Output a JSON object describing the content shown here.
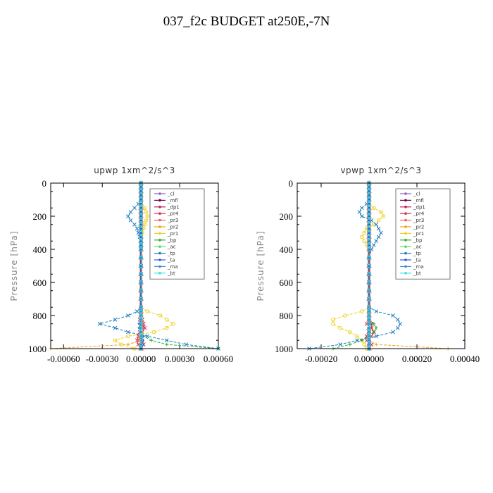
{
  "page": {
    "title": "037_f2c  BUDGET at250E,-7N"
  },
  "chart_data": [
    {
      "type": "line",
      "title": "upwp   1xm^2/s^3",
      "ylabel": "Pressure [hPa]",
      "xlim": [
        -0.0007,
        0.0006
      ],
      "ylim": [
        1000,
        0
      ],
      "xticks": [
        -0.0006,
        -0.0003,
        0.0,
        0.0003,
        0.0006
      ],
      "xtick_labels": [
        "-0.00060",
        "-0.00030",
        "0.00000",
        "0.00030",
        "0.00060"
      ],
      "yticks": [
        0,
        200,
        400,
        600,
        800,
        1000
      ],
      "legend": "top-right",
      "pressure": [
        0,
        25,
        50,
        75,
        100,
        125,
        150,
        175,
        200,
        225,
        250,
        275,
        300,
        325,
        350,
        375,
        400,
        450,
        500,
        550,
        600,
        650,
        700,
        750,
        775,
        800,
        825,
        850,
        875,
        900,
        925,
        950,
        975,
        1000
      ],
      "series": [
        {
          "name": "_cl",
          "color": "#9060c0",
          "marker": "o",
          "values": [
            0,
            0,
            0,
            0,
            0,
            0,
            0,
            0,
            0,
            0,
            0,
            0,
            0,
            0,
            0,
            0,
            0,
            0,
            0,
            0,
            0,
            0,
            0,
            0,
            0,
            0,
            0,
            0,
            0,
            0,
            0,
            0,
            0,
            0
          ]
        },
        {
          "name": "_mfl",
          "color": "#700050",
          "marker": "d",
          "values": [
            0,
            0,
            0,
            0,
            0,
            0,
            0,
            0,
            0,
            0,
            0,
            0,
            0,
            0,
            0,
            0,
            0,
            0,
            0,
            0,
            0,
            0,
            0,
            0,
            0,
            0,
            0,
            0,
            0,
            0,
            0,
            0,
            0,
            0
          ]
        },
        {
          "name": "_dp1",
          "color": "#c02060",
          "marker": "*",
          "values": [
            0,
            0,
            0,
            0,
            0,
            0,
            0,
            0,
            0,
            0,
            0,
            0,
            0,
            0,
            0,
            0,
            0,
            0,
            0,
            0,
            0,
            0,
            0,
            0,
            0,
            0,
            1e-05,
            2e-05,
            1e-05,
            -1e-05,
            -2e-05,
            1e-05,
            2e-05,
            0
          ]
        },
        {
          "name": "_pr4",
          "color": "#e03050",
          "marker": "x",
          "values": [
            0,
            0,
            0,
            0,
            0,
            0,
            0,
            0,
            0,
            0,
            0,
            0,
            0,
            0,
            0,
            0,
            0,
            0,
            0,
            0,
            0,
            0,
            0,
            0,
            0,
            0,
            -1e-05,
            2e-05,
            3e-05,
            1e-05,
            -2e-05,
            -3e-05,
            -2e-05,
            0
          ]
        },
        {
          "name": "_pr3",
          "color": "#f06060",
          "marker": "^",
          "values": [
            0,
            0,
            0,
            0,
            0,
            0,
            0,
            0,
            0,
            0,
            0,
            0,
            0,
            0,
            0,
            0,
            0,
            0,
            0,
            0,
            0,
            0,
            0,
            0,
            0,
            0,
            0,
            1e-05,
            1e-05,
            0,
            -1e-05,
            -1e-05,
            0,
            0
          ]
        },
        {
          "name": "_pr2",
          "color": "#f0a020",
          "marker": "+",
          "values": [
            0,
            0,
            0,
            0,
            0,
            0,
            0,
            0,
            0,
            0,
            0,
            0,
            0,
            0,
            0,
            0,
            0,
            0,
            0,
            0,
            0,
            0,
            0,
            0,
            0,
            0,
            0,
            0,
            0,
            0,
            0,
            0,
            -0.0001,
            -0.0007
          ]
        },
        {
          "name": "_pr1",
          "color": "#f0d020",
          "marker": "o",
          "values": [
            0,
            0,
            0,
            0,
            0,
            0,
            3e-05,
            4e-05,
            5e-05,
            4e-05,
            3e-05,
            2e-05,
            1e-05,
            0,
            0,
            0,
            0,
            0,
            0,
            0,
            0,
            0,
            0,
            0,
            5e-05,
            0.00015,
            0.0002,
            0.00025,
            0.0002,
            0.0001,
            -0.0001,
            -0.0002,
            -0.00015,
            -5e-05
          ]
        },
        {
          "name": "_bp",
          "color": "#30b030",
          "marker": "+",
          "values": [
            0,
            0,
            0,
            0,
            0,
            0,
            0,
            0,
            0,
            0,
            0,
            0,
            0,
            0,
            0,
            0,
            0,
            0,
            0,
            0,
            0,
            0,
            0,
            0,
            0,
            0,
            0,
            0,
            0,
            0,
            2e-05,
            8e-05,
            0.0002,
            0.0006
          ]
        },
        {
          "name": "_ac",
          "color": "#60e060",
          "marker": "o",
          "values": [
            0,
            0,
            0,
            0,
            0,
            0,
            0,
            0,
            0,
            0,
            0,
            0,
            0,
            0,
            0,
            0,
            0,
            0,
            0,
            0,
            0,
            0,
            0,
            0,
            0,
            0,
            0,
            0,
            0,
            0,
            0,
            0,
            0,
            0
          ]
        },
        {
          "name": "_tp",
          "color": "#2080c0",
          "marker": "x",
          "values": [
            0,
            0,
            0,
            0,
            0,
            -2e-05,
            -5e-05,
            -8e-05,
            -0.0001,
            -8e-05,
            -5e-05,
            -3e-05,
            -2e-05,
            -1e-05,
            0,
            0,
            0,
            0,
            0,
            0,
            0,
            0,
            0,
            0,
            -3e-05,
            -0.0001,
            -0.0002,
            -0.00032,
            -0.0002,
            -0.0001,
            5e-05,
            0.0002,
            0.00035,
            0.0006
          ]
        },
        {
          "name": "_ta",
          "color": "#3060d0",
          "marker": "d",
          "values": [
            0,
            0,
            0,
            0,
            0,
            0,
            0,
            0,
            0,
            0,
            0,
            0,
            0,
            0,
            0,
            0,
            0,
            0,
            0,
            0,
            0,
            0,
            0,
            0,
            0,
            0,
            0,
            -1e-05,
            -1e-05,
            0,
            1e-05,
            1e-05,
            1e-05,
            0
          ]
        },
        {
          "name": "_ma",
          "color": "#4090e0",
          "marker": "-",
          "values": [
            0,
            0,
            0,
            0,
            0,
            0,
            0,
            0,
            0,
            0,
            0,
            0,
            0,
            0,
            0,
            0,
            0,
            0,
            0,
            0,
            0,
            0,
            0,
            0,
            0,
            0,
            0,
            0,
            0,
            0,
            0,
            0,
            0,
            0
          ]
        },
        {
          "name": "_bt",
          "color": "#40e0e0",
          "marker": "o",
          "values": [
            0,
            0,
            0,
            0,
            0,
            0,
            0,
            0,
            0,
            0,
            0,
            0,
            0,
            0,
            0,
            0,
            0,
            0,
            0,
            0,
            0,
            0,
            0,
            0,
            0,
            0,
            0,
            0,
            0,
            0,
            0,
            0,
            0,
            0
          ]
        }
      ]
    },
    {
      "type": "line",
      "title": "vpwp   1xm^2/s^3",
      "ylabel": "Pressure [hPa]",
      "xlim": [
        -0.0003,
        0.0004
      ],
      "ylim": [
        1000,
        0
      ],
      "xticks": [
        -0.0002,
        0.0,
        0.0002,
        0.0004
      ],
      "xtick_labels": [
        "-0.00020",
        "0.00000",
        "0.00020",
        "0.00040"
      ],
      "yticks": [
        0,
        200,
        400,
        600,
        800,
        1000
      ],
      "legend": "top-right",
      "pressure": [
        0,
        25,
        50,
        75,
        100,
        125,
        150,
        175,
        200,
        225,
        250,
        275,
        300,
        325,
        350,
        375,
        400,
        450,
        500,
        550,
        600,
        650,
        700,
        750,
        775,
        800,
        825,
        850,
        875,
        900,
        925,
        950,
        975,
        1000
      ],
      "series": [
        {
          "name": "_cl",
          "color": "#9060c0",
          "marker": "o",
          "values": [
            0,
            0,
            0,
            0,
            0,
            0,
            0,
            0,
            0,
            0,
            0,
            0,
            0,
            0,
            0,
            0,
            0,
            0,
            0,
            0,
            0,
            0,
            0,
            0,
            0,
            0,
            0,
            0,
            0,
            0,
            0,
            0,
            0,
            0
          ]
        },
        {
          "name": "_mfl",
          "color": "#700050",
          "marker": "d",
          "values": [
            0,
            0,
            0,
            0,
            0,
            0,
            0,
            0,
            0,
            0,
            0,
            0,
            0,
            0,
            0,
            0,
            0,
            0,
            0,
            0,
            0,
            0,
            0,
            0,
            0,
            0,
            0,
            0,
            0,
            0,
            0,
            0,
            0,
            0
          ]
        },
        {
          "name": "_dp1",
          "color": "#c02060",
          "marker": "*",
          "values": [
            0,
            0,
            0,
            0,
            0,
            0,
            0,
            0,
            0,
            0,
            0,
            0,
            0,
            0,
            0,
            0,
            0,
            0,
            0,
            0,
            0,
            0,
            0,
            0,
            0,
            0,
            0,
            1e-05,
            1e-05,
            0,
            -1e-05,
            0,
            1e-05,
            0
          ]
        },
        {
          "name": "_pr4",
          "color": "#e03050",
          "marker": "x",
          "values": [
            0,
            0,
            0,
            0,
            0,
            0,
            0,
            0,
            0,
            0,
            0,
            0,
            0,
            0,
            0,
            0,
            0,
            0,
            0,
            0,
            0,
            0,
            0,
            0,
            0,
            0,
            0,
            -1e-05,
            1e-05,
            2e-05,
            1e-05,
            -1e-05,
            1e-05,
            0
          ]
        },
        {
          "name": "_pr3",
          "color": "#f06060",
          "marker": "^",
          "values": [
            0,
            0,
            0,
            0,
            0,
            0,
            0,
            0,
            0,
            0,
            0,
            0,
            0,
            0,
            0,
            0,
            0,
            0,
            0,
            0,
            0,
            0,
            0,
            0,
            0,
            0,
            0,
            0,
            0,
            0,
            0,
            0,
            0,
            0
          ]
        },
        {
          "name": "_pr2",
          "color": "#f0a020",
          "marker": "+",
          "values": [
            0,
            0,
            0,
            0,
            0,
            0,
            0,
            0,
            0,
            0,
            0,
            0,
            0,
            0,
            0,
            0,
            0,
            0,
            0,
            0,
            0,
            0,
            0,
            0,
            0,
            0,
            0,
            0,
            0,
            0,
            0,
            0,
            3e-05,
            0.00033
          ]
        },
        {
          "name": "_pr1",
          "color": "#f0d020",
          "marker": "o",
          "values": [
            0,
            0,
            0,
            0,
            0,
            0,
            2e-05,
            5e-05,
            6e-05,
            4e-05,
            2e-05,
            -1e-05,
            -2e-05,
            -3e-05,
            -2e-05,
            -1e-05,
            0,
            0,
            0,
            0,
            0,
            0,
            0,
            0,
            -3e-05,
            -0.0001,
            -0.00015,
            -0.00015,
            -0.00012,
            -8e-05,
            -5e-05,
            -3e-05,
            -2e-05,
            -1e-05
          ]
        },
        {
          "name": "_bp",
          "color": "#30b030",
          "marker": "+",
          "values": [
            0,
            0,
            0,
            0,
            0,
            0,
            0,
            0,
            0,
            0,
            0,
            0,
            0,
            0,
            0,
            0,
            0,
            0,
            0,
            0,
            0,
            0,
            0,
            0,
            0,
            0,
            0,
            2e-05,
            3e-05,
            2e-05,
            0,
            -3e-05,
            -8e-05,
            -0.00015
          ]
        },
        {
          "name": "_ac",
          "color": "#60e060",
          "marker": "o",
          "values": [
            0,
            0,
            0,
            0,
            0,
            0,
            0,
            0,
            0,
            0,
            0,
            0,
            0,
            0,
            0,
            0,
            0,
            0,
            0,
            0,
            0,
            0,
            0,
            0,
            0,
            0,
            0,
            0,
            0,
            0,
            0,
            0,
            0,
            0
          ]
        },
        {
          "name": "_tp",
          "color": "#2080c0",
          "marker": "x",
          "values": [
            0,
            0,
            0,
            0,
            0,
            -1e-05,
            -3e-05,
            -4e-05,
            -3e-05,
            1e-05,
            3e-05,
            4e-05,
            5e-05,
            4e-05,
            3e-05,
            2e-05,
            1e-05,
            0,
            0,
            0,
            0,
            0,
            0,
            0,
            3e-05,
            0.0001,
            0.00012,
            0.00013,
            0.00012,
            0.0001,
            3e-05,
            -5e-05,
            -0.00012,
            -0.00025
          ]
        },
        {
          "name": "_ta",
          "color": "#3060d0",
          "marker": "d",
          "values": [
            0,
            0,
            0,
            0,
            0,
            0,
            0,
            0,
            0,
            0,
            0,
            0,
            0,
            0,
            0,
            0,
            0,
            0,
            0,
            0,
            0,
            0,
            0,
            0,
            0,
            0,
            0,
            0,
            0,
            0,
            0,
            0,
            0,
            0
          ]
        },
        {
          "name": "_ma",
          "color": "#4090e0",
          "marker": "-",
          "values": [
            0,
            0,
            0,
            0,
            0,
            0,
            0,
            0,
            0,
            0,
            0,
            0,
            0,
            0,
            0,
            0,
            0,
            0,
            0,
            0,
            0,
            0,
            0,
            0,
            0,
            0,
            0,
            0,
            0,
            0,
            0,
            0,
            0,
            0
          ]
        },
        {
          "name": "_bt",
          "color": "#40e0e0",
          "marker": "o",
          "values": [
            0,
            0,
            0,
            0,
            0,
            0,
            0,
            0,
            0,
            0,
            0,
            0,
            0,
            0,
            0,
            0,
            0,
            0,
            0,
            0,
            0,
            0,
            0,
            0,
            0,
            0,
            0,
            0,
            0,
            0,
            0,
            0,
            0,
            0
          ]
        }
      ]
    }
  ]
}
